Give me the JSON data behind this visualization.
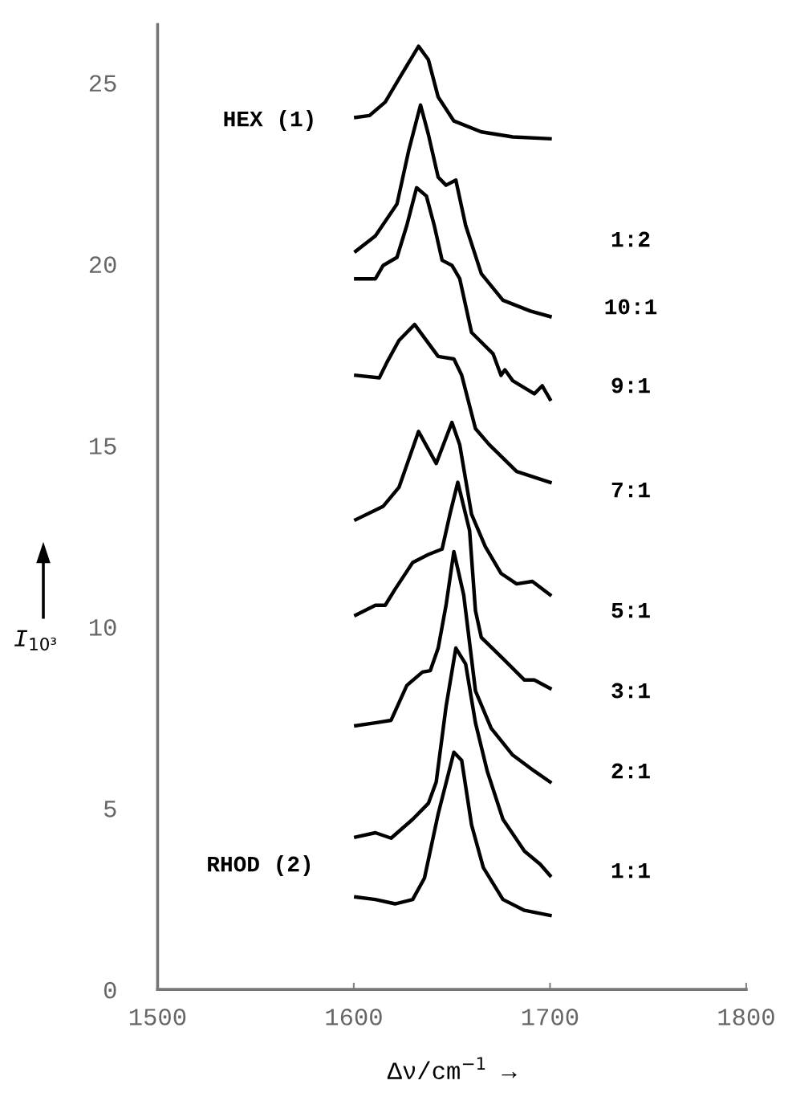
{
  "chart_data": {
    "type": "line",
    "xlabel": "Δν/cm$^{−1}$ →",
    "ylabel": "I$_{10³}$",
    "xlim": [
      1500,
      1800
    ],
    "xticks": [
      1500,
      1600,
      1700,
      1800
    ],
    "ylim": [
      0,
      26.6
    ],
    "yticks": [
      0,
      5,
      10,
      15,
      20,
      25
    ],
    "grid": false,
    "legend": false,
    "marker": "none",
    "line_style": "solid",
    "series": [
      {
        "color": "#000000",
        "x": [
          1601,
          1608,
          1616,
          1624,
          1633,
          1638,
          1643,
          1651,
          1665,
          1681,
          1700
        ],
        "values": [
          24.04,
          24.09,
          24.46,
          25.19,
          26.0,
          25.63,
          24.6,
          23.94,
          23.64,
          23.5,
          23.45
        ]
      },
      {
        "color": "#000000",
        "x": [
          1601,
          1611,
          1622,
          1628,
          1634,
          1638,
          1643,
          1647,
          1652,
          1657,
          1665,
          1676,
          1690,
          1700
        ],
        "values": [
          20.35,
          20.77,
          21.65,
          23.13,
          24.38,
          23.57,
          22.39,
          22.17,
          22.31,
          21.06,
          19.73,
          19.0,
          18.7,
          18.55
        ]
      },
      {
        "color": "#000000",
        "x": [
          1601,
          1611,
          1615,
          1622,
          1627,
          1632,
          1637,
          1641,
          1645,
          1650,
          1654,
          1660,
          1671,
          1675,
          1677,
          1681,
          1692,
          1696,
          1700
        ],
        "values": [
          19.59,
          19.59,
          19.96,
          20.18,
          21.06,
          22.1,
          21.87,
          21.06,
          20.1,
          19.96,
          19.59,
          18.11,
          17.52,
          16.93,
          17.08,
          16.78,
          16.42,
          16.64,
          16.27
        ]
      },
      {
        "color": "#000000",
        "x": [
          1601,
          1613,
          1617,
          1623,
          1631,
          1643,
          1651,
          1655,
          1662,
          1669,
          1683,
          1700
        ],
        "values": [
          16.93,
          16.86,
          17.3,
          17.89,
          18.33,
          17.45,
          17.38,
          16.93,
          15.46,
          15.02,
          14.28,
          13.98
        ]
      },
      {
        "color": "#000000",
        "x": [
          1601,
          1615,
          1623,
          1633,
          1642,
          1650,
          1654,
          1660,
          1667,
          1675,
          1683,
          1691,
          1700
        ],
        "values": [
          12.95,
          13.32,
          13.84,
          15.38,
          14.5,
          15.63,
          15.01,
          13.1,
          12.21,
          11.47,
          11.18,
          11.25,
          10.88
        ]
      },
      {
        "color": "#000000",
        "x": [
          1601,
          1611,
          1616,
          1621,
          1630,
          1638,
          1645,
          1649,
          1653,
          1659,
          1662,
          1665,
          1676,
          1687,
          1692,
          1700
        ],
        "values": [
          10.32,
          10.59,
          10.59,
          11.03,
          11.77,
          11.99,
          12.14,
          13.1,
          13.98,
          12.65,
          10.44,
          9.7,
          9.12,
          8.53,
          8.53,
          8.3
        ]
      },
      {
        "color": "#000000",
        "x": [
          1601,
          1611,
          1619,
          1627,
          1635,
          1639,
          1643,
          1647,
          1651,
          1656,
          1662,
          1670,
          1681,
          1692,
          1700
        ],
        "values": [
          7.27,
          7.35,
          7.42,
          8.38,
          8.75,
          8.79,
          9.41,
          10.59,
          12.07,
          10.88,
          8.23,
          7.2,
          6.46,
          6.02,
          5.72
        ]
      },
      {
        "color": "#000000",
        "x": [
          1601,
          1611,
          1619,
          1630,
          1638,
          1642,
          1647,
          1652,
          1657,
          1662,
          1668,
          1676,
          1687,
          1695,
          1700
        ],
        "values": [
          4.2,
          4.32,
          4.17,
          4.69,
          5.13,
          5.72,
          7.79,
          9.41,
          8.97,
          7.35,
          6.02,
          4.69,
          3.81,
          3.45,
          3.14
        ]
      },
      {
        "color": "#000000",
        "x": [
          1601,
          1611,
          1621,
          1630,
          1636,
          1643,
          1651,
          1655,
          1660,
          1666,
          1676,
          1687,
          1700
        ],
        "values": [
          2.55,
          2.48,
          2.36,
          2.48,
          3.07,
          4.84,
          6.54,
          6.31,
          4.54,
          3.36,
          2.48,
          2.18,
          2.04
        ]
      }
    ],
    "annotations": [
      "HEX (1)",
      "1:2",
      "10:1",
      "9:1",
      "7:1",
      "5:1",
      "3:1",
      "2:1",
      "1:1",
      "RHOD (2)"
    ]
  }
}
